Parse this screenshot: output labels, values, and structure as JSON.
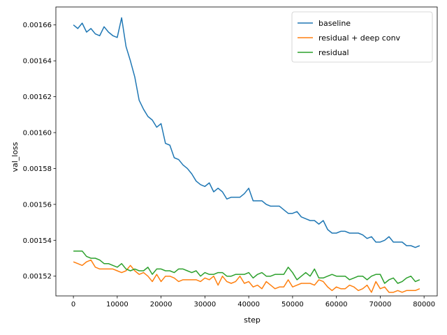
{
  "chart_data": {
    "type": "line",
    "xlabel": "step",
    "ylabel": "val_loss",
    "xlim": [
      -4000,
      83000
    ],
    "ylim": [
      0.001509,
      0.00167
    ],
    "xticks": [
      0,
      10000,
      20000,
      30000,
      40000,
      50000,
      60000,
      70000,
      80000
    ],
    "xtick_labels": [
      "0",
      "10000",
      "20000",
      "30000",
      "40000",
      "50000",
      "60000",
      "70000",
      "80000"
    ],
    "yticks": [
      0.00152,
      0.00154,
      0.00156,
      0.00158,
      0.0016,
      0.00162,
      0.00164,
      0.00166
    ],
    "ytick_labels": [
      "0.00152",
      "0.00154",
      "0.00156",
      "0.00158",
      "0.00160",
      "0.00162",
      "0.00164",
      "0.00166"
    ],
    "grid": false,
    "legend_position": "top-right",
    "x": [
      0,
      1000,
      2000,
      3000,
      4000,
      5000,
      6000,
      7000,
      8000,
      9000,
      10000,
      11000,
      12000,
      13000,
      14000,
      15000,
      16000,
      17000,
      18000,
      19000,
      20000,
      21000,
      22000,
      23000,
      24000,
      25000,
      26000,
      27000,
      28000,
      29000,
      30000,
      31000,
      32000,
      33000,
      34000,
      35000,
      36000,
      37000,
      38000,
      39000,
      40000,
      41000,
      42000,
      43000,
      44000,
      45000,
      46000,
      47000,
      48000,
      49000,
      50000,
      51000,
      52000,
      53000,
      54000,
      55000,
      56000,
      57000,
      58000,
      59000,
      60000,
      61000,
      62000,
      63000,
      64000,
      65000,
      66000,
      67000,
      68000,
      69000,
      70000,
      71000,
      72000,
      73000,
      74000,
      75000,
      76000,
      77000,
      78000,
      79000
    ],
    "series": [
      {
        "name": "baseline",
        "color": "#1f77b4",
        "values": [
          0.00166,
          0.001658,
          0.001661,
          0.001656,
          0.001658,
          0.001655,
          0.001654,
          0.001659,
          0.001656,
          0.001654,
          0.001653,
          0.001664,
          0.001648,
          0.00164,
          0.001631,
          0.001618,
          0.001613,
          0.001609,
          0.001607,
          0.001603,
          0.001605,
          0.001594,
          0.001593,
          0.001586,
          0.001585,
          0.001582,
          0.00158,
          0.001577,
          0.001573,
          0.001571,
          0.00157,
          0.001572,
          0.001567,
          0.001569,
          0.001567,
          0.001563,
          0.001564,
          0.001564,
          0.001564,
          0.001566,
          0.001569,
          0.001562,
          0.001562,
          0.001562,
          0.00156,
          0.001559,
          0.001559,
          0.001559,
          0.001557,
          0.001555,
          0.001555,
          0.001556,
          0.001553,
          0.001552,
          0.001551,
          0.001551,
          0.001549,
          0.001551,
          0.001546,
          0.001544,
          0.001544,
          0.001545,
          0.001545,
          0.001544,
          0.001544,
          0.001544,
          0.001543,
          0.001541,
          0.001542,
          0.001539,
          0.001539,
          0.00154,
          0.001542,
          0.001539,
          0.001539,
          0.001539,
          0.001537,
          0.001537,
          0.001536,
          0.001537
        ]
      },
      {
        "name": "residual + deep conv",
        "color": "#ff7f0e",
        "values": [
          0.001528,
          0.001527,
          0.001526,
          0.001528,
          0.001529,
          0.001525,
          0.001524,
          0.001524,
          0.001524,
          0.001524,
          0.001523,
          0.001522,
          0.001523,
          0.001526,
          0.001523,
          0.001521,
          0.001522,
          0.00152,
          0.001517,
          0.001521,
          0.001517,
          0.00152,
          0.00152,
          0.001519,
          0.001517,
          0.001518,
          0.001518,
          0.001518,
          0.001518,
          0.001517,
          0.001519,
          0.001518,
          0.00152,
          0.001515,
          0.00152,
          0.001517,
          0.001516,
          0.001517,
          0.00152,
          0.001516,
          0.001517,
          0.001514,
          0.001515,
          0.001513,
          0.001517,
          0.001515,
          0.001513,
          0.001514,
          0.001514,
          0.001518,
          0.001514,
          0.001515,
          0.001516,
          0.001516,
          0.001516,
          0.001515,
          0.001518,
          0.001517,
          0.001514,
          0.001512,
          0.001514,
          0.001513,
          0.001513,
          0.001515,
          0.001514,
          0.001512,
          0.001513,
          0.001515,
          0.001511,
          0.001517,
          0.001513,
          0.001514,
          0.001511,
          0.001511,
          0.001512,
          0.001511,
          0.001512,
          0.001512,
          0.001512,
          0.001513
        ]
      },
      {
        "name": "residual",
        "color": "#2ca02c",
        "values": [
          0.001534,
          0.001534,
          0.001534,
          0.001531,
          0.00153,
          0.00153,
          0.001529,
          0.001527,
          0.001527,
          0.001526,
          0.001525,
          0.001527,
          0.001524,
          0.001523,
          0.001524,
          0.001523,
          0.001523,
          0.001525,
          0.001521,
          0.001524,
          0.001524,
          0.001523,
          0.001523,
          0.001522,
          0.001524,
          0.001524,
          0.001523,
          0.001522,
          0.001523,
          0.00152,
          0.001522,
          0.001521,
          0.001521,
          0.001522,
          0.001522,
          0.00152,
          0.00152,
          0.001521,
          0.001521,
          0.001521,
          0.001522,
          0.001519,
          0.001521,
          0.001522,
          0.00152,
          0.00152,
          0.001521,
          0.001521,
          0.001521,
          0.001525,
          0.001522,
          0.001518,
          0.00152,
          0.001522,
          0.00152,
          0.001524,
          0.001519,
          0.001519,
          0.00152,
          0.001521,
          0.00152,
          0.00152,
          0.00152,
          0.001518,
          0.001519,
          0.00152,
          0.00152,
          0.001518,
          0.00152,
          0.001521,
          0.001521,
          0.001516,
          0.001518,
          0.001519,
          0.001516,
          0.001517,
          0.001519,
          0.00152,
          0.001517,
          0.001518
        ]
      }
    ]
  }
}
